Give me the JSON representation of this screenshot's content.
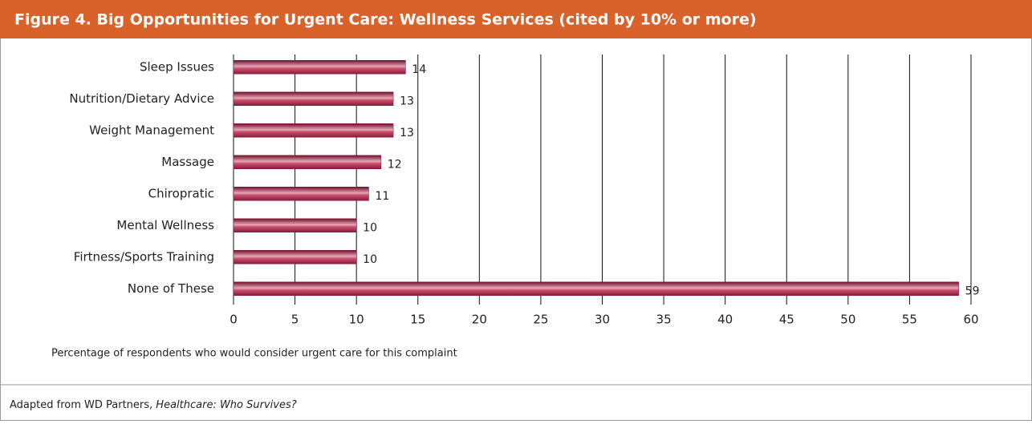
{
  "chart_data": {
    "type": "bar",
    "orientation": "horizontal",
    "title": "Figure 4. Big Opportunities for Urgent Care: Wellness Services (cited by 10% or more)",
    "categories": [
      "Sleep Issues",
      "Nutrition/Dietary Advice",
      "Weight Management",
      "Massage",
      "Chiropratic",
      "Mental Wellness",
      "Firtness/Sports Training",
      "None of These"
    ],
    "values": [
      14,
      13,
      13,
      12,
      11,
      10,
      10,
      59
    ],
    "color": "#8b1a3a",
    "xlim": [
      0,
      60
    ],
    "xticks": [
      0,
      5,
      10,
      15,
      20,
      25,
      30,
      35,
      40,
      45,
      50,
      55,
      60
    ],
    "grid": true,
    "xlabel": "Percentage of respondents who would consider urgent care for this complaint",
    "source_prefix": "Adapted from WD Partners,",
    "source_title": "Healthcare: Who Survives?"
  }
}
